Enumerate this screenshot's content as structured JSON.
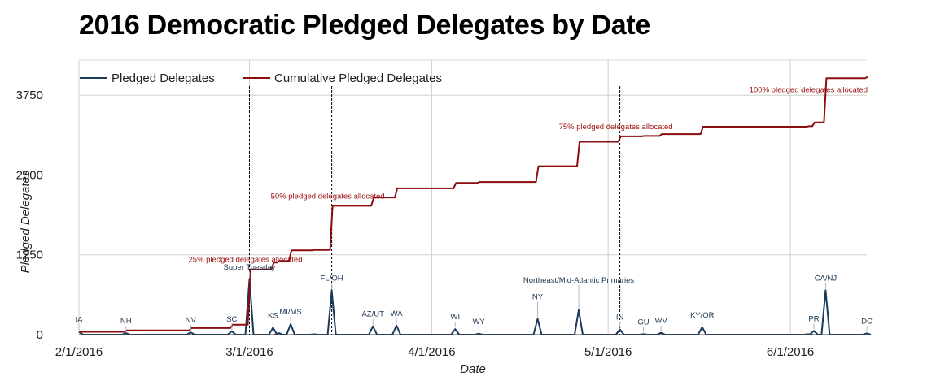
{
  "chart_data": {
    "type": "line",
    "title": "2016 Democratic Pledged Delegates by Date",
    "xlabel": "Date",
    "ylabel": "Pledged Delegates",
    "x_range": [
      "2016-02-01",
      "2016-06-14"
    ],
    "ylim": [
      0,
      4300
    ],
    "y_ticks": [
      0,
      1250,
      2500,
      3750
    ],
    "x_ticks": [
      "2/1/2016",
      "3/1/2016",
      "4/1/2016",
      "5/1/2016",
      "6/1/2016"
    ],
    "x_tick_dates": [
      "2016-02-01",
      "2016-03-01",
      "2016-04-01",
      "2016-05-01",
      "2016-06-01"
    ],
    "grid": true,
    "legend_position": "top-left",
    "series": [
      {
        "name": "Pledged Delegates",
        "color": "#1a3a5c",
        "points": [
          [
            "2016-02-01",
            44
          ],
          [
            "2016-02-09",
            24
          ],
          [
            "2016-02-20",
            35
          ],
          [
            "2016-02-27",
            53
          ],
          [
            "2016-03-01",
            865
          ],
          [
            "2016-03-05",
            109
          ],
          [
            "2016-03-06",
            25
          ],
          [
            "2016-03-08",
            166
          ],
          [
            "2016-03-12",
            6
          ],
          [
            "2016-03-15",
            691
          ],
          [
            "2016-03-22",
            131
          ],
          [
            "2016-03-26",
            142
          ],
          [
            "2016-04-05",
            86
          ],
          [
            "2016-04-09",
            14
          ],
          [
            "2016-04-19",
            247
          ],
          [
            "2016-04-26",
            384
          ],
          [
            "2016-05-03",
            83
          ],
          [
            "2016-05-07",
            7
          ],
          [
            "2016-05-10",
            29
          ],
          [
            "2016-05-17",
            116
          ],
          [
            "2016-06-04",
            7
          ],
          [
            "2016-06-05",
            60
          ],
          [
            "2016-06-07",
            694
          ],
          [
            "2016-06-14",
            20
          ]
        ]
      },
      {
        "name": "Cumulative Pledged Delegates",
        "color": "#8b0d0d",
        "points": [
          [
            "2016-02-01",
            44
          ],
          [
            "2016-02-09",
            68
          ],
          [
            "2016-02-20",
            103
          ],
          [
            "2016-02-27",
            156
          ],
          [
            "2016-03-01",
            1021
          ],
          [
            "2016-03-05",
            1130
          ],
          [
            "2016-03-06",
            1155
          ],
          [
            "2016-03-08",
            1321
          ],
          [
            "2016-03-12",
            1327
          ],
          [
            "2016-03-15",
            2018
          ],
          [
            "2016-03-22",
            2149
          ],
          [
            "2016-03-26",
            2291
          ],
          [
            "2016-04-05",
            2377
          ],
          [
            "2016-04-09",
            2391
          ],
          [
            "2016-04-19",
            2638
          ],
          [
            "2016-04-26",
            3022
          ],
          [
            "2016-05-03",
            3105
          ],
          [
            "2016-05-07",
            3112
          ],
          [
            "2016-05-10",
            3141
          ],
          [
            "2016-05-17",
            3257
          ],
          [
            "2016-06-04",
            3264
          ],
          [
            "2016-06-05",
            3324
          ],
          [
            "2016-06-07",
            4018
          ],
          [
            "2016-06-14",
            4038
          ]
        ]
      }
    ],
    "event_labels": [
      {
        "text": "IA",
        "date": "2016-02-01",
        "value": 44
      },
      {
        "text": "NH",
        "date": "2016-02-09",
        "value": 24
      },
      {
        "text": "NV",
        "date": "2016-02-20",
        "value": 35
      },
      {
        "text": "SC",
        "date": "2016-02-27",
        "value": 53
      },
      {
        "text": "Super Tuesday",
        "date": "2016-03-01",
        "value": 865
      },
      {
        "text": "KS",
        "date": "2016-03-05",
        "value": 109
      },
      {
        "text": "MI/MS",
        "date": "2016-03-08",
        "value": 166
      },
      {
        "text": "FL/OH",
        "date": "2016-03-15",
        "value": 691
      },
      {
        "text": "AZ/UT",
        "date": "2016-03-22",
        "value": 131
      },
      {
        "text": "WA",
        "date": "2016-03-26",
        "value": 142
      },
      {
        "text": "WI",
        "date": "2016-04-05",
        "value": 86
      },
      {
        "text": "WY",
        "date": "2016-04-09",
        "value": 14
      },
      {
        "text": "NY",
        "date": "2016-04-19",
        "value": 247
      },
      {
        "text": "Northeast/Mid-Atlantic Primaries",
        "date": "2016-04-26",
        "value": 384
      },
      {
        "text": "IN",
        "date": "2016-05-03",
        "value": 83
      },
      {
        "text": "GU",
        "date": "2016-05-07",
        "value": 7
      },
      {
        "text": "WV",
        "date": "2016-05-10",
        "value": 29
      },
      {
        "text": "KY/OR",
        "date": "2016-05-17",
        "value": 116
      },
      {
        "text": "PR",
        "date": "2016-06-05",
        "value": 60
      },
      {
        "text": "CA/NJ",
        "date": "2016-06-07",
        "value": 694
      },
      {
        "text": "DC",
        "date": "2016-06-14",
        "value": 20
      }
    ],
    "milestones": [
      {
        "text": "25% pledged delegates allocated",
        "date": "2016-03-01",
        "value": 1021
      },
      {
        "text": "50% pledged delegates allocated",
        "date": "2016-03-15",
        "value": 2018
      },
      {
        "text": "75% pledged delegates allocated",
        "date": "2016-05-03",
        "value": 3105
      },
      {
        "text": "100% pledged delegates allocated",
        "date": "2016-06-14",
        "value": 4038
      }
    ]
  }
}
